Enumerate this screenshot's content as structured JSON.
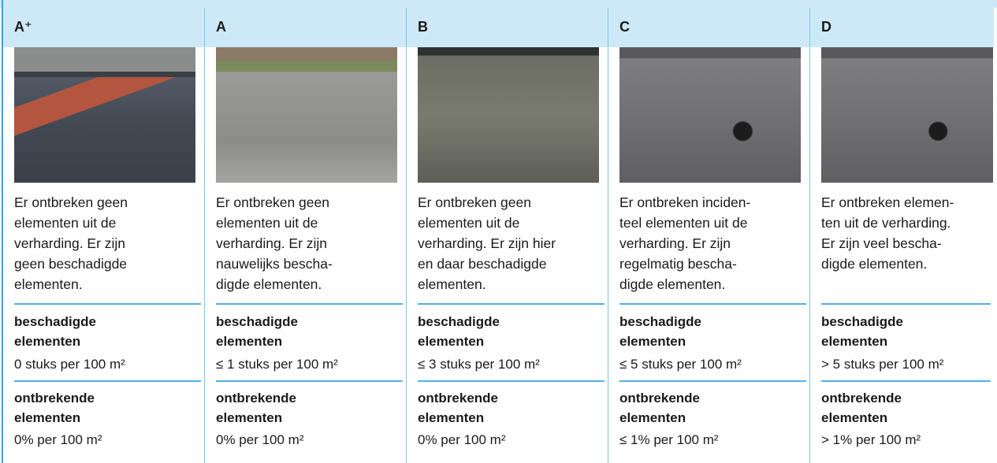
{
  "columns": [
    {
      "grade": "A⁺",
      "description": [
        "Er ontbreken geen",
        "elementen uit de",
        "verharding. Er zijn",
        "geen beschadigde",
        "elementen."
      ],
      "damaged_label": "beschadigde elementen",
      "damaged_value": "0 stuks per 100 m²",
      "missing_label": "ontbrekende elementen",
      "missing_value": "0% per 100 m²"
    },
    {
      "grade": "A",
      "description": [
        "Er ontbreken geen",
        "elementen uit de",
        "verharding. Er zijn",
        "nauwelijks bescha-",
        "digde elementen."
      ],
      "damaged_label": "beschadigde elementen",
      "damaged_value": "≤ 1 stuks per 100 m²",
      "missing_label": "ontbrekende elementen",
      "missing_value": "0% per 100 m²"
    },
    {
      "grade": "B",
      "description": [
        "Er ontbreken geen",
        "elementen uit de",
        "verharding. Er zijn hier",
        "en daar beschadigde",
        "elementen."
      ],
      "damaged_label": "beschadigde elementen",
      "damaged_value": "≤ 3 stuks per 100 m²",
      "missing_label": "ontbrekende elementen",
      "missing_value": "0% per 100 m²"
    },
    {
      "grade": "C",
      "description": [
        "Er ontbreken inciden-",
        "teel elementen uit de",
        "verharding. Er zijn",
        "regelmatig bescha-",
        "digde elementen."
      ],
      "damaged_label": "beschadigde elementen",
      "damaged_value": "≤ 5 stuks per 100 m²",
      "missing_label": "ontbrekende elementen",
      "missing_value": "≤ 1% per 100 m²"
    },
    {
      "grade": "D",
      "description": [
        "Er ontbreken elemen-",
        "ten uit de verharding.",
        "Er zijn veel bescha-",
        "digde elementen."
      ],
      "damaged_label": "beschadigde elementen",
      "damaged_value": "> 5 stuks per 100 m²",
      "missing_label": "ontbrekende elementen",
      "missing_value": "> 1% per 100 m²"
    }
  ]
}
